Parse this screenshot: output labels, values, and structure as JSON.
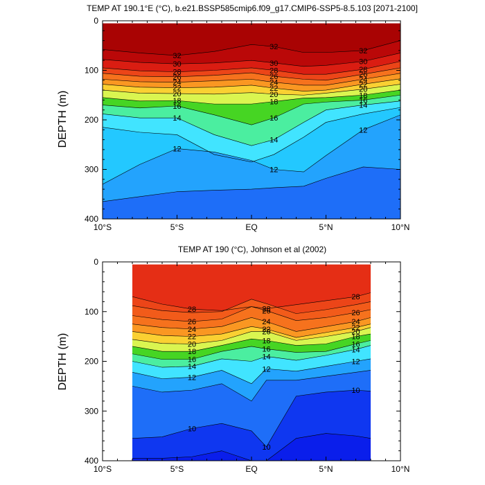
{
  "chart_data": [
    {
      "type": "heatmap",
      "subtype": "filled-contour",
      "title": "TEMP AT 190.1°E (°C), b.e21.BSSP585cmip6.f09_g17.CMIP6-SSP5-8.5.103 [2071-2100]",
      "xlabel": "",
      "ylabel": "DEPTH (m)",
      "x_ticks": [
        "10°S",
        "5°S",
        "EQ",
        "5°N",
        "10°N"
      ],
      "x_tick_values": [
        -10,
        -5,
        0,
        5,
        10
      ],
      "y_ticks": [
        "0",
        "100",
        "200",
        "300",
        "400"
      ],
      "y_tick_values": [
        0,
        100,
        200,
        300,
        400
      ],
      "xlim": [
        -10,
        10
      ],
      "ylim": [
        400,
        0
      ],
      "y_reversed": true,
      "data_xlim": [
        -10,
        10
      ],
      "data_ylim": [
        5,
        400
      ],
      "contour_interval": 1,
      "contour_range": [
        11,
        33
      ],
      "colormap": "rainbow (blue → cyan → green → yellow → orange → red)",
      "depth_of_isotherm": {
        "x": [
          -10,
          -7.5,
          -5,
          -2.5,
          0,
          1.5,
          3.5,
          5,
          7.5,
          10
        ],
        "isotherms": [
          {
            "temp": 32,
            "depths": [
              58,
              65,
              70,
              62,
              48,
              52,
              64,
              64,
              60,
              40
            ]
          },
          {
            "temp": 30,
            "depths": [
              78,
              84,
              87,
              85,
              80,
              85,
              92,
              90,
              82,
              65
            ]
          },
          {
            "temp": 28,
            "depths": [
              95,
              101,
              103,
              100,
              95,
              100,
              108,
              108,
              98,
              82
            ]
          },
          {
            "temp": 26,
            "depths": [
              106,
              112,
              113,
              110,
              105,
              112,
              118,
              120,
              108,
              95
            ]
          },
          {
            "temp": 24,
            "depths": [
              118,
              123,
              124,
              121,
              118,
              124,
              130,
              130,
              118,
              106
            ]
          },
          {
            "temp": 22,
            "depths": [
              128,
              134,
              135,
              134,
              130,
              136,
              142,
              140,
              128,
              117
            ]
          },
          {
            "temp": 20,
            "depths": [
              140,
              146,
              147,
              148,
              145,
              148,
              150,
              146,
              138,
              128
            ]
          },
          {
            "temp": 18,
            "depths": [
              155,
              162,
              161,
              168,
              168,
              163,
              156,
              155,
              150,
              140
            ]
          },
          {
            "temp": 16,
            "depths": [
              170,
              176,
              172,
              190,
              210,
              196,
              168,
              164,
              160,
              150
            ]
          },
          {
            "temp": 14,
            "depths": [
              188,
              196,
              196,
              230,
              252,
              240,
              205,
              180,
              170,
              162
            ]
          },
          {
            "temp": 13,
            "depths": [
              215,
              225,
              230,
              270,
              285,
              270,
              235,
              205,
              188,
              175
            ]
          },
          {
            "temp": 12,
            "depths": [
              330,
              290,
              258,
              265,
              282,
              300,
              305,
              272,
              220,
              190
            ]
          },
          {
            "temp": 11,
            "depths": [
              365,
              355,
              345,
              342,
              340,
              337,
              334,
              318,
              295,
              300
            ]
          }
        ]
      },
      "contour_labels": [
        "32",
        "30",
        "28",
        "26",
        "24",
        "22",
        "20",
        "18",
        "16",
        "14",
        "12"
      ]
    },
    {
      "type": "heatmap",
      "subtype": "filled-contour",
      "title": "TEMP AT 190 (°C), Johnson et al (2002)",
      "xlabel": "",
      "ylabel": "DEPTH (m)",
      "x_ticks": [
        "10°S",
        "5°S",
        "EQ",
        "5°N",
        "10°N"
      ],
      "x_tick_values": [
        -10,
        -5,
        0,
        5,
        10
      ],
      "y_ticks": [
        "0",
        "100",
        "200",
        "300",
        "400"
      ],
      "y_tick_values": [
        0,
        100,
        200,
        300,
        400
      ],
      "xlim": [
        -10,
        10
      ],
      "ylim": [
        400,
        0
      ],
      "y_reversed": true,
      "data_xlim": [
        -8,
        8
      ],
      "data_ylim": [
        5,
        400
      ],
      "contour_interval": 1,
      "contour_range": [
        9,
        29
      ],
      "colormap": "rainbow (blue → cyan → green → yellow → orange → red)",
      "depth_of_isotherm": {
        "x": [
          -8,
          -6,
          -4,
          -2,
          0,
          1,
          3,
          5,
          7,
          8
        ],
        "isotherms": [
          {
            "temp": 28,
            "depths": [
              70,
              85,
              95,
              98,
              90,
              94,
              86,
              78,
              70,
              62
            ]
          },
          {
            "temp": 27,
            "depths": [
              88,
              98,
              102,
              100,
              75,
              84,
              104,
              96,
              86,
              80
            ]
          },
          {
            "temp": 26,
            "depths": [
              108,
              116,
              120,
              115,
              90,
              98,
              118,
              112,
              102,
              96
            ]
          },
          {
            "temp": 24,
            "depths": [
              125,
              132,
              135,
              130,
              112,
              120,
              140,
              130,
              120,
              112
            ]
          },
          {
            "temp": 22,
            "depths": [
              140,
              148,
              150,
              145,
              130,
              135,
              152,
              142,
              132,
              125
            ]
          },
          {
            "temp": 20,
            "depths": [
              156,
              164,
              165,
              158,
              140,
              140,
              158,
              150,
              140,
              132
            ]
          },
          {
            "temp": 18,
            "depths": [
              170,
              180,
              180,
              168,
              155,
              158,
              168,
              165,
              150,
              145
            ]
          },
          {
            "temp": 16,
            "depths": [
              185,
              196,
              196,
              180,
              170,
              175,
              182,
              180,
              165,
              158
            ]
          },
          {
            "temp": 14,
            "depths": [
              200,
              212,
              210,
              195,
              200,
              190,
              198,
              188,
              176,
              168
            ]
          },
          {
            "temp": 12,
            "depths": [
              222,
              235,
              232,
              218,
              245,
              215,
              220,
              210,
              200,
              195
            ]
          },
          {
            "temp": 11,
            "depths": [
              250,
              262,
              258,
              245,
              280,
              238,
              238,
              230,
              222,
              218
            ]
          },
          {
            "temp": 10,
            "depths": [
              355,
              352,
              335,
              325,
              340,
              372,
              270,
              262,
              258,
              260
            ]
          },
          {
            "temp": 9,
            "depths": [
              395,
              395,
              392,
              380,
              400,
              400,
              355,
              345,
              350,
              355
            ]
          }
        ]
      },
      "contour_labels": [
        "28",
        "26",
        "24",
        "22",
        "20",
        "18",
        "16",
        "14",
        "12",
        "10"
      ]
    }
  ]
}
